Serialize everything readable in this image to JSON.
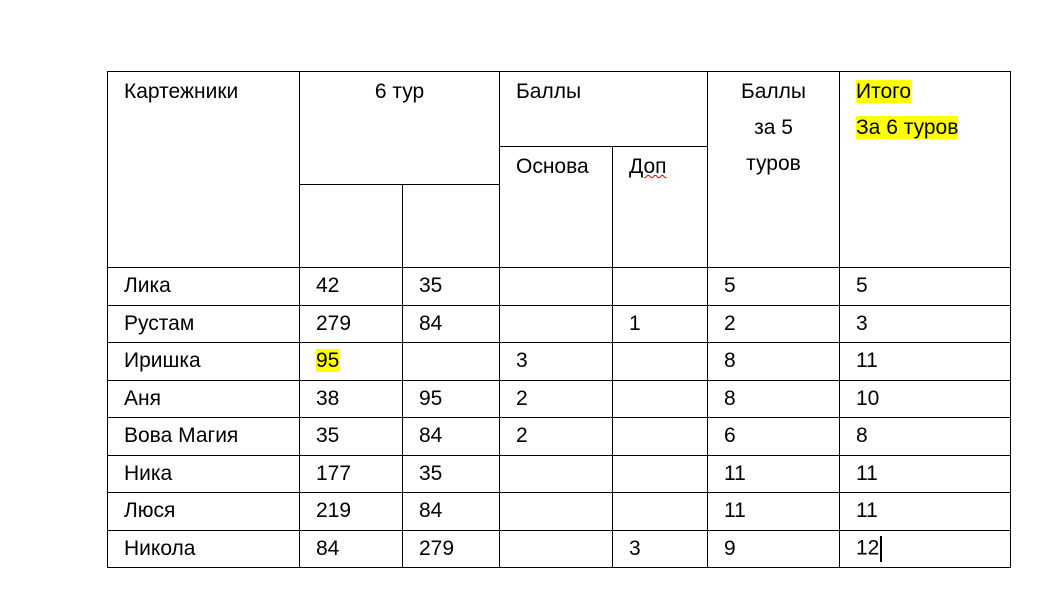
{
  "header": {
    "players": "Картежники",
    "round6": "6 тур",
    "points": "Баллы",
    "base": "Основа",
    "extra": "Доп",
    "points5_line1": "Баллы",
    "points5_line2": "за 5",
    "points5_line3": "туров",
    "total_line1": "Итого",
    "total_line2": "За 6 туров"
  },
  "highlight_color": "#ffff00",
  "rows": [
    {
      "name": "Лика",
      "a": "42",
      "b": "35",
      "base": "",
      "extra": "",
      "p5": "5",
      "total": "5"
    },
    {
      "name": "Рустам",
      "a": "279",
      "b": "84",
      "base": "",
      "extra": "1",
      "p5": "2",
      "total": "3"
    },
    {
      "name": "Иришка",
      "a": "95",
      "b": "",
      "base": "3",
      "extra": "",
      "p5": "8",
      "total": "11"
    },
    {
      "name": "Аня",
      "a": "38",
      "b": "95",
      "base": "2",
      "extra": "",
      "p5": "8",
      "total": "10"
    },
    {
      "name": "Вова Магия",
      "a": "35",
      "b": "84",
      "base": "2",
      "extra": "",
      "p5": "6",
      "total": "8"
    },
    {
      "name": "Ника",
      "a": "177",
      "b": "35",
      "base": "",
      "extra": "",
      "p5": "11",
      "total": "11"
    },
    {
      "name": "Люся",
      "a": "219",
      "b": "84",
      "base": "",
      "extra": "",
      "p5": "11",
      "total": "11"
    },
    {
      "name": "Никола",
      "a": "84",
      "b": "279",
      "base": "",
      "extra": "3",
      "p5": "9",
      "total": "12"
    }
  ]
}
